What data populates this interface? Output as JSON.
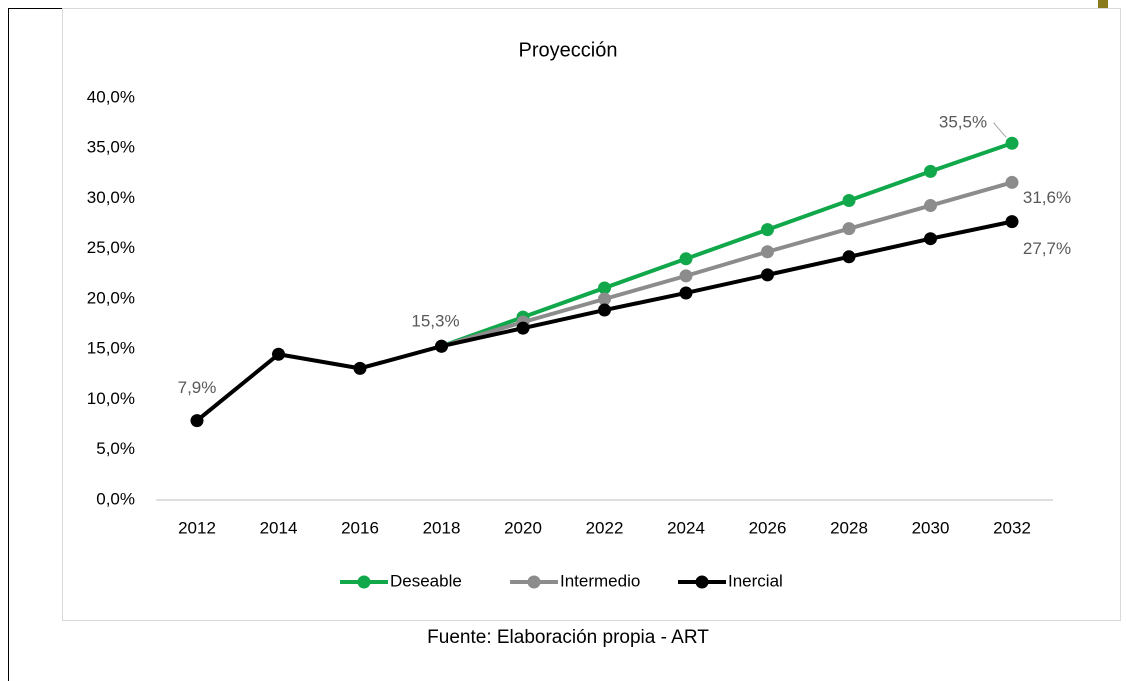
{
  "chart_data": {
    "type": "line",
    "title": "Proyección",
    "caption": "Fuente: Elaboración propia - ART",
    "categories": [
      "2012",
      "2014",
      "2016",
      "2018",
      "2020",
      "2022",
      "2024",
      "2026",
      "2028",
      "2030",
      "2032"
    ],
    "series": [
      {
        "name": "Deseable",
        "color": "#10a84a",
        "values": [
          null,
          null,
          null,
          15.3,
          18.2,
          21.1,
          24.0,
          26.9,
          29.8,
          32.7,
          35.5
        ],
        "value_labels": [
          null,
          null,
          null,
          null,
          null,
          null,
          null,
          null,
          null,
          null,
          "35,5%"
        ]
      },
      {
        "name": "Intermedio",
        "color": "#8c8c8c",
        "values": [
          null,
          null,
          null,
          15.3,
          17.7,
          20.0,
          22.3,
          24.7,
          27.0,
          29.3,
          31.6
        ],
        "value_labels": [
          null,
          null,
          null,
          null,
          null,
          null,
          null,
          null,
          null,
          null,
          "31,6%"
        ]
      },
      {
        "name": "Inercial",
        "color": "#000000",
        "values": [
          7.9,
          14.5,
          13.1,
          15.3,
          17.1,
          18.9,
          20.6,
          22.4,
          24.2,
          26.0,
          27.7
        ],
        "value_labels": [
          "7,9%",
          null,
          null,
          "15,3%",
          null,
          null,
          null,
          null,
          null,
          null,
          "27,7%"
        ]
      }
    ],
    "ylim": [
      0,
      40
    ],
    "yticks": [
      {
        "value": 0,
        "label": "0,0%"
      },
      {
        "value": 5,
        "label": "5,0%"
      },
      {
        "value": 10,
        "label": "10,0%"
      },
      {
        "value": 15,
        "label": "15,0%"
      },
      {
        "value": 20,
        "label": "20,0%"
      },
      {
        "value": 25,
        "label": "25,0%"
      },
      {
        "value": 30,
        "label": "30,0%"
      },
      {
        "value": 35,
        "label": "35,0%"
      },
      {
        "value": 40,
        "label": "40,0%"
      }
    ],
    "legend": "bottom"
  }
}
